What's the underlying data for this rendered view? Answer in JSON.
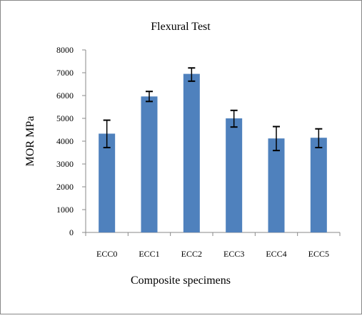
{
  "chart_data": {
    "type": "bar",
    "title": "Flexural Test",
    "xlabel": "Composite specimens",
    "ylabel": "MOR MPa",
    "categories": [
      "ECC0",
      "ECC1",
      "ECC2",
      "ECC3",
      "ECC4",
      "ECC5"
    ],
    "values": [
      4330,
      5960,
      6950,
      5000,
      4120,
      4150
    ],
    "error_bars": {
      "upper": [
        4920,
        6180,
        7210,
        5350,
        4640,
        4540
      ],
      "lower": [
        3720,
        5740,
        6630,
        4620,
        3590,
        3720
      ]
    },
    "ylim": [
      0,
      8000
    ],
    "yticks": [
      "0",
      "1000",
      "2000",
      "3000",
      "4000",
      "5000",
      "6000",
      "7000",
      "8000"
    ],
    "grid": false,
    "legend": "none",
    "colors": {
      "bar": "#4f81bd",
      "error_bar": "#000000",
      "axis": "#888888",
      "border": "#888888"
    }
  }
}
